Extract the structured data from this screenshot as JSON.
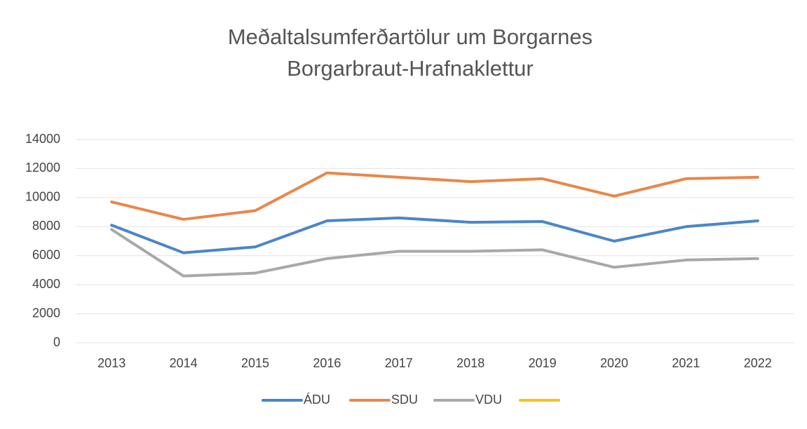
{
  "chart_data": {
    "type": "line",
    "title": "Meðaltalsumferðartölur um Borgarnes",
    "subtitle": "Borgarbraut-Hrafnaklettur",
    "categories": [
      "2013",
      "2014",
      "2015",
      "2016",
      "2017",
      "2018",
      "2019",
      "2020",
      "2021",
      "2022"
    ],
    "series": [
      {
        "name": "ÁDU",
        "color": "#4a86c8",
        "values": [
          8100,
          6200,
          6600,
          8400,
          8600,
          8300,
          8350,
          7000,
          8000,
          8400
        ]
      },
      {
        "name": "SDU",
        "color": "#e8874a",
        "values": [
          9700,
          8500,
          9100,
          11700,
          11400,
          11100,
          11300,
          10100,
          11300,
          11400
        ]
      },
      {
        "name": "VDU",
        "color": "#a8a8a8",
        "values": [
          7800,
          4600,
          4800,
          5800,
          6300,
          6300,
          6400,
          5200,
          5700,
          5800
        ]
      },
      {
        "color": "#f5c21b",
        "values": [
          null,
          null,
          null,
          null,
          null,
          null,
          null,
          null,
          null,
          null
        ]
      }
    ],
    "ylim": [
      0,
      14000
    ],
    "yticks": [
      0,
      2000,
      4000,
      6000,
      8000,
      10000,
      12000,
      14000
    ],
    "grid": true,
    "legend": "bottom"
  }
}
